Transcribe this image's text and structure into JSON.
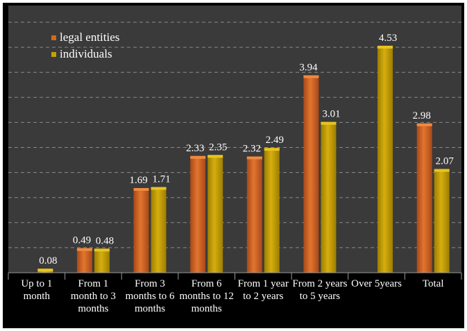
{
  "chart_data": {
    "type": "bar",
    "categories": [
      "Up to 1 month",
      "From 1 month to 3 months",
      "From 3 months to 6 months",
      "From 6 months to 12 months",
      "From 1 year to 2 years",
      "From 2 years to 5 years",
      "Over 5years",
      "Total"
    ],
    "series": [
      {
        "name": "legal entities",
        "color": "#D2691E",
        "values": [
          null,
          0.49,
          1.69,
          2.33,
          2.32,
          3.94,
          null,
          2.98
        ]
      },
      {
        "name": "individuals",
        "color": "#C9A000",
        "values": [
          0.08,
          0.48,
          1.71,
          2.35,
          2.49,
          3.01,
          4.53,
          2.07
        ]
      }
    ],
    "ylim": [
      0,
      5
    ],
    "grid": true,
    "legend": "top-left",
    "background": "#3A3A3A",
    "frame": "#000000"
  }
}
